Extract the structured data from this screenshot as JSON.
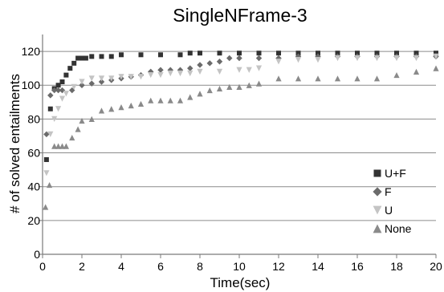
{
  "chart_data": {
    "type": "scatter",
    "title": "SingleNFrame-3",
    "xlabel": "Time(sec)",
    "ylabel": "# of solved entailments",
    "xlim": [
      0,
      20
    ],
    "ylim": [
      0,
      130
    ],
    "x_ticks": [
      0,
      2,
      4,
      6,
      8,
      10,
      12,
      14,
      16,
      18,
      20
    ],
    "y_ticks": [
      0,
      20,
      40,
      60,
      80,
      100,
      120
    ],
    "grid": "horizontal",
    "legend_position": "bottom-right",
    "series": [
      {
        "name": "U+F",
        "marker": "square",
        "color": "#333333",
        "points": [
          [
            0.2,
            56
          ],
          [
            0.4,
            86
          ],
          [
            0.6,
            98
          ],
          [
            0.8,
            100
          ],
          [
            1.0,
            102
          ],
          [
            1.2,
            106
          ],
          [
            1.4,
            110
          ],
          [
            1.6,
            113
          ],
          [
            1.8,
            116
          ],
          [
            2.0,
            116
          ],
          [
            2.2,
            116
          ],
          [
            2.5,
            117
          ],
          [
            3.0,
            117
          ],
          [
            3.5,
            117
          ],
          [
            4.0,
            118
          ],
          [
            5.0,
            118
          ],
          [
            6.0,
            118
          ],
          [
            7.0,
            118
          ],
          [
            7.5,
            119
          ],
          [
            8.0,
            119
          ],
          [
            9.0,
            119
          ],
          [
            10.0,
            119
          ],
          [
            11.0,
            119
          ],
          [
            12.0,
            119
          ],
          [
            13.0,
            119
          ],
          [
            14.0,
            119
          ],
          [
            15.0,
            119
          ],
          [
            16.0,
            119
          ],
          [
            17.0,
            119
          ],
          [
            18.0,
            119
          ],
          [
            19.0,
            119
          ],
          [
            20.0,
            119
          ]
        ]
      },
      {
        "name": "F",
        "marker": "diamond",
        "color": "#6b6b6b",
        "points": [
          [
            0.2,
            71
          ],
          [
            0.4,
            94
          ],
          [
            0.6,
            97
          ],
          [
            0.8,
            97
          ],
          [
            1.0,
            97
          ],
          [
            1.5,
            97
          ],
          [
            2.0,
            100
          ],
          [
            2.5,
            101
          ],
          [
            3.0,
            102
          ],
          [
            3.5,
            103
          ],
          [
            4.0,
            104
          ],
          [
            4.5,
            105
          ],
          [
            5.0,
            106
          ],
          [
            5.5,
            108
          ],
          [
            6.0,
            109
          ],
          [
            6.5,
            109
          ],
          [
            7.0,
            109
          ],
          [
            7.5,
            110
          ],
          [
            8.0,
            112
          ],
          [
            8.5,
            113
          ],
          [
            9.0,
            114
          ],
          [
            9.5,
            116
          ],
          [
            10.0,
            116
          ],
          [
            11.0,
            116
          ],
          [
            12.0,
            116
          ],
          [
            13.0,
            117
          ],
          [
            14.0,
            117
          ],
          [
            15.0,
            117
          ],
          [
            16.0,
            117
          ],
          [
            17.0,
            117
          ],
          [
            18.0,
            117
          ],
          [
            19.0,
            117
          ],
          [
            20.0,
            117
          ]
        ]
      },
      {
        "name": "U",
        "marker": "triangle-down",
        "color": "#c4c4c4",
        "points": [
          [
            0.2,
            48
          ],
          [
            0.4,
            71
          ],
          [
            0.6,
            80
          ],
          [
            0.8,
            86
          ],
          [
            1.0,
            92
          ],
          [
            1.2,
            95
          ],
          [
            1.6,
            99
          ],
          [
            2.0,
            102
          ],
          [
            2.5,
            104
          ],
          [
            3.0,
            104
          ],
          [
            3.5,
            104
          ],
          [
            4.0,
            105
          ],
          [
            4.5,
            105
          ],
          [
            5.0,
            105
          ],
          [
            5.5,
            106
          ],
          [
            6.0,
            106
          ],
          [
            6.5,
            107
          ],
          [
            7.0,
            107
          ],
          [
            7.5,
            107
          ],
          [
            8.0,
            108
          ],
          [
            9.0,
            108
          ],
          [
            10.0,
            109
          ],
          [
            10.5,
            109
          ],
          [
            11.0,
            110
          ],
          [
            12.0,
            114
          ],
          [
            13.0,
            115
          ],
          [
            14.0,
            115
          ],
          [
            15.0,
            116
          ],
          [
            16.0,
            116
          ],
          [
            17.0,
            116
          ],
          [
            18.0,
            116
          ],
          [
            19.0,
            116
          ],
          [
            20.0,
            117
          ]
        ]
      },
      {
        "name": "None",
        "marker": "triangle-up",
        "color": "#8a8a8a",
        "points": [
          [
            0.15,
            28
          ],
          [
            0.35,
            41
          ],
          [
            0.6,
            64
          ],
          [
            0.8,
            64
          ],
          [
            1.0,
            64
          ],
          [
            1.2,
            64
          ],
          [
            1.5,
            69
          ],
          [
            1.8,
            74
          ],
          [
            2.0,
            79
          ],
          [
            2.5,
            80
          ],
          [
            3.0,
            85
          ],
          [
            3.5,
            86
          ],
          [
            4.0,
            87
          ],
          [
            4.5,
            88
          ],
          [
            5.0,
            89
          ],
          [
            5.5,
            91
          ],
          [
            6.0,
            91
          ],
          [
            6.5,
            91
          ],
          [
            7.0,
            91
          ],
          [
            7.5,
            93
          ],
          [
            8.0,
            95
          ],
          [
            8.5,
            97
          ],
          [
            9.0,
            98
          ],
          [
            9.5,
            99
          ],
          [
            10.0,
            99
          ],
          [
            10.5,
            100
          ],
          [
            11.0,
            101
          ],
          [
            12.0,
            104
          ],
          [
            13.0,
            104
          ],
          [
            14.0,
            104
          ],
          [
            15.0,
            104
          ],
          [
            16.0,
            104
          ],
          [
            17.0,
            104
          ],
          [
            18.0,
            106
          ],
          [
            19.0,
            108
          ],
          [
            20.0,
            110
          ]
        ]
      }
    ]
  }
}
